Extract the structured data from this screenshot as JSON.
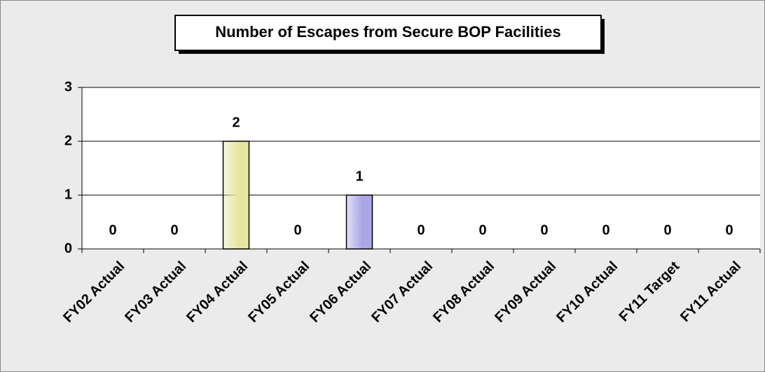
{
  "chart_data": {
    "type": "bar",
    "title": "Number of Escapes from Secure BOP Facilities",
    "categories": [
      "FY02 Actual",
      "FY03 Actual",
      "FY04 Actual",
      "FY05 Actual",
      "FY06 Actual",
      "FY07 Actual",
      "FY08 Actual",
      "FY09 Actual",
      "FY10 Actual",
      "FY11 Target",
      "FY11 Actual"
    ],
    "values": [
      0,
      0,
      2,
      0,
      1,
      0,
      0,
      0,
      0,
      0,
      0
    ],
    "colors": [
      null,
      null,
      "#e6e6a0",
      null,
      "#a8a8e6",
      null,
      null,
      null,
      null,
      null,
      null
    ],
    "ylim": [
      0,
      3
    ],
    "yticks": [
      0,
      1,
      2,
      3
    ],
    "grid": true
  }
}
